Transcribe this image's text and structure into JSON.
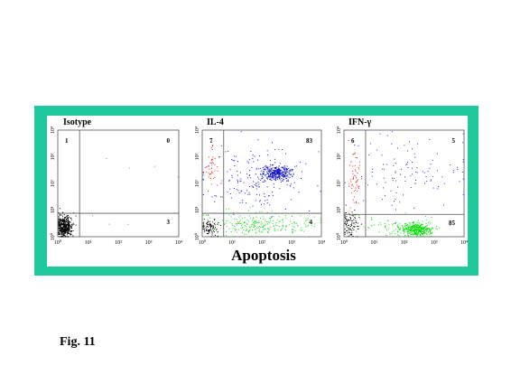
{
  "panels": [
    {
      "title": "Isotype",
      "quadrants": {
        "upper_left": 1,
        "upper_right": 0,
        "lower_right": 3
      }
    },
    {
      "title": "IL-4",
      "quadrants": {
        "upper_left": 7,
        "upper_right": 83,
        "lower_right": 4
      }
    },
    {
      "title": "IFN-γ",
      "quadrants": {
        "upper_left": 6,
        "upper_right": 5,
        "lower_right": 85
      }
    }
  ],
  "x_ticks": [
    "10⁰",
    "10¹",
    "10²",
    "10³",
    "10⁴"
  ],
  "y_ticks": [
    "10⁰",
    "10¹",
    "10²",
    "10³",
    "10⁴"
  ],
  "x_axis_label": "Apoptosis",
  "caption": "Fig. 11"
}
